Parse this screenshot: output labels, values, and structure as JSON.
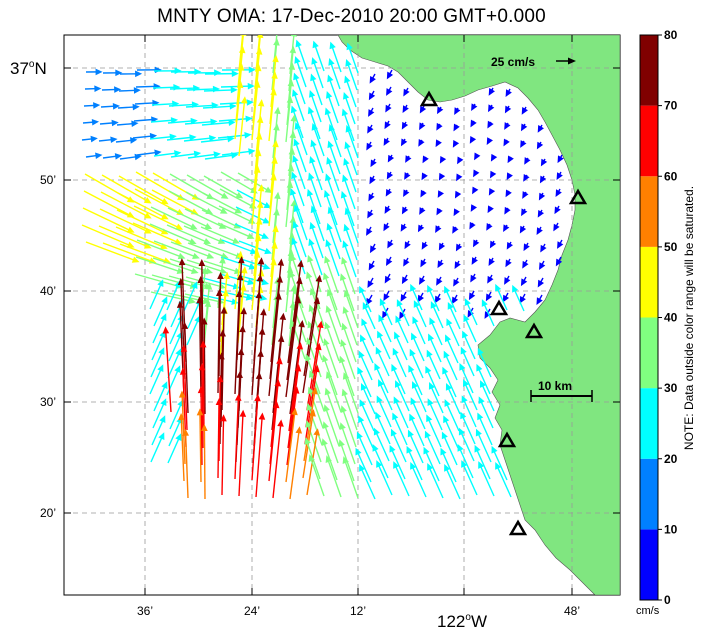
{
  "title": "MNTY OMA: 17-Dec-2010 20:00 GMT+0.000",
  "axes": {
    "y_ticks": [
      {
        "label_main": "37",
        "label_deg": "o",
        "label_dir": "N",
        "big": true
      },
      {
        "label": "50’"
      },
      {
        "label": "40’"
      },
      {
        "label": "30’"
      },
      {
        "label": "20’"
      }
    ],
    "x_ticks": [
      {
        "label": "36’"
      },
      {
        "label": "24’"
      },
      {
        "label": "12’"
      },
      {
        "label_main": "122",
        "label_deg": "o",
        "label_dir": "W",
        "big": true
      },
      {
        "label": "48’"
      }
    ]
  },
  "scale_arrow": {
    "label": "25 cm/s"
  },
  "scale_bar": {
    "label": "10 km"
  },
  "colorbar": {
    "ticks": [
      "0",
      "10",
      "20",
      "30",
      "40",
      "50",
      "60",
      "70",
      "80"
    ],
    "colors": [
      "#0000ff",
      "#0080ff",
      "#00ffff",
      "#80ff80",
      "#ffff00",
      "#ff8000",
      "#ff0000",
      "#800000"
    ],
    "unit": "cm/s",
    "note": "NOTE: Data outside color range will be saturated."
  },
  "colors": {
    "land": "#80e680",
    "grid": "#999999"
  }
}
